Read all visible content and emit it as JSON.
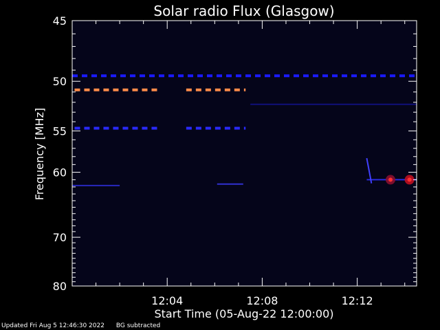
{
  "chart_data": {
    "type": "heatmap",
    "title": "Solar radio Flux (Glasgow)",
    "xlabel": "Start Time (05-Aug-22 12:00:00)",
    "ylabel": "Frequency [MHz]",
    "x_range_minutes": [
      0,
      14.5
    ],
    "ylim": [
      45,
      80
    ],
    "y_scale": "reciprocal",
    "y_ticks": [
      45,
      50,
      55,
      60,
      70,
      80
    ],
    "x_ticks": [
      {
        "minute": 4,
        "label": "12:04"
      },
      {
        "minute": 8,
        "label": "12:08"
      },
      {
        "minute": 12,
        "label": "12:12"
      }
    ],
    "background_color": "#05051a",
    "features": [
      {
        "type": "band",
        "freq": 49.5,
        "t_start": 0,
        "t_end": 14.5,
        "color": "#1a1aff",
        "dashed": true
      },
      {
        "type": "band",
        "freq": 50.8,
        "t_start": 0.1,
        "t_end": 3.7,
        "color": "#ff8c4a",
        "dashed": true
      },
      {
        "type": "band",
        "freq": 50.8,
        "t_start": 4.8,
        "t_end": 7.3,
        "color": "#ff8c4a",
        "dashed": true
      },
      {
        "type": "band",
        "freq": 54.7,
        "t_start": 0.1,
        "t_end": 3.7,
        "color": "#2a2aff",
        "dashed": true
      },
      {
        "type": "band",
        "freq": 54.7,
        "t_start": 4.8,
        "t_end": 7.3,
        "color": "#2a2aff",
        "dashed": true
      },
      {
        "type": "band",
        "freq": 52.2,
        "t_start": 7.5,
        "t_end": 14.5,
        "color": "#10107a",
        "dashed": false
      },
      {
        "type": "band",
        "freq": 61.8,
        "t_start": 0,
        "t_end": 2.0,
        "color": "#2828c0",
        "dashed": false
      },
      {
        "type": "band",
        "freq": 61.6,
        "t_start": 6.1,
        "t_end": 7.2,
        "color": "#3030d0",
        "dashed": false
      },
      {
        "type": "band",
        "freq": 61.0,
        "t_start": 12.4,
        "t_end": 14.5,
        "color": "#2a2ae0",
        "dashed": false
      },
      {
        "type": "burst",
        "t": 13.4,
        "freq": 61.0,
        "color": "#8a1030"
      },
      {
        "type": "burst",
        "t": 14.2,
        "freq": 61.0,
        "color": "#c01020"
      },
      {
        "type": "drift",
        "t0": 12.4,
        "f0": 58.2,
        "t1": 12.6,
        "f1": 61.5,
        "color": "#4040ff"
      }
    ]
  },
  "footer": {
    "updated": "Updated Fri Aug  5 12:46:30 2022",
    "note": "BG subtracted"
  }
}
